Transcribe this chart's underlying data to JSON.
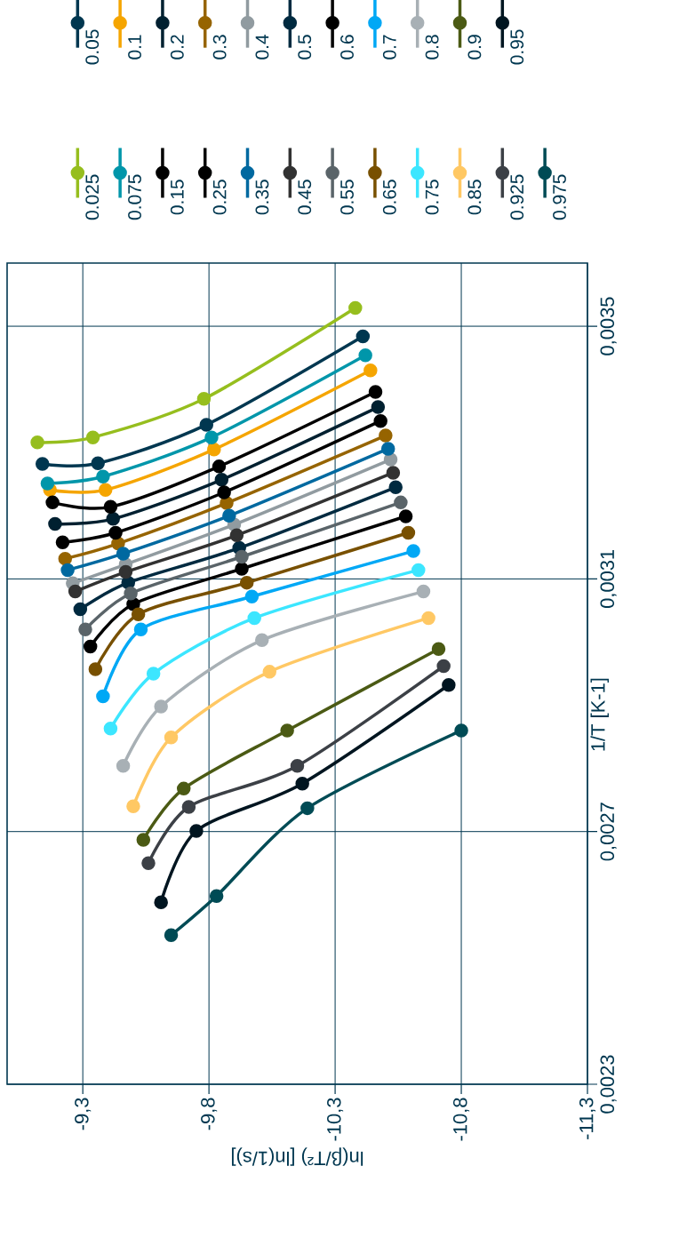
{
  "chart_data": {
    "type": "line",
    "xlabel": "ln(β/T²)  [ln(1/s)]",
    "ylabel": "1/T  [K-1]",
    "xlim": [
      -9.0,
      -11.3
    ],
    "ylim": [
      0.0023,
      0.0036
    ],
    "xticks": [
      {
        "value": -9.3,
        "label": "-9,3"
      },
      {
        "value": -9.8,
        "label": "-9,8"
      },
      {
        "value": -10.3,
        "label": "-10,3"
      },
      {
        "value": -10.8,
        "label": "-10,8"
      },
      {
        "value": -11.3,
        "label": "-11,3"
      }
    ],
    "yticks": [
      {
        "value": 0.0023,
        "label": "0,0023"
      },
      {
        "value": 0.0027,
        "label": "0,0027"
      },
      {
        "value": 0.0031,
        "label": "0,0031"
      },
      {
        "value": 0.0035,
        "label": "0,0035"
      }
    ],
    "grid": true,
    "legend": "top",
    "marker": "circle",
    "line_style": "solid",
    "series": [
      {
        "name": "0.025",
        "color": "#96be1e",
        "values": [
          0.003529,
          0.003385,
          0.003324,
          0.003316
        ],
        "x": [
          -10.38,
          -9.78,
          -9.34,
          -9.12
        ]
      },
      {
        "name": "0.05",
        "color": "#003750",
        "values": [
          0.003484,
          0.003344,
          0.003283,
          0.003282
        ],
        "x": [
          -10.41,
          -9.79,
          -9.36,
          -9.14
        ]
      },
      {
        "name": "0.075",
        "color": "#0096aa",
        "values": [
          0.003454,
          0.003324,
          0.003262,
          0.003251
        ],
        "x": [
          -10.42,
          -9.81,
          -9.38,
          -9.16
        ]
      },
      {
        "name": "0.1",
        "color": "#f5a500",
        "values": [
          0.00343,
          0.003305,
          0.003241,
          0.003241
        ],
        "x": [
          -10.44,
          -9.82,
          -9.39,
          -9.17
        ]
      },
      {
        "name": "0.15",
        "color": "#000000",
        "values": [
          0.003396,
          0.003278,
          0.003214,
          0.003221
        ],
        "x": [
          -10.46,
          -9.84,
          -9.41,
          -9.18
        ]
      },
      {
        "name": "0.2",
        "color": "#002030",
        "values": [
          0.003372,
          0.003257,
          0.003195,
          0.003187
        ],
        "x": [
          -10.47,
          -9.85,
          -9.42,
          -9.19
        ]
      },
      {
        "name": "0.25",
        "color": "#000000",
        "values": [
          0.00335,
          0.003237,
          0.003173,
          0.003158
        ],
        "x": [
          -10.48,
          -9.86,
          -9.43,
          -9.22
        ]
      },
      {
        "name": "0.3",
        "color": "#966400",
        "values": [
          0.003327,
          0.00322,
          0.003156,
          0.003132
        ],
        "x": [
          -10.5,
          -9.87,
          -9.44,
          -9.23
        ]
      },
      {
        "name": "0.35",
        "color": "#0069a0",
        "values": [
          0.003306,
          0.0032,
          0.00314,
          0.003114
        ],
        "x": [
          -10.51,
          -9.88,
          -9.46,
          -9.24
        ]
      },
      {
        "name": "0.4",
        "color": "#919ba0",
        "values": [
          0.003289,
          0.003186,
          0.003123,
          0.003093
        ],
        "x": [
          -10.52,
          -9.9,
          -9.47,
          -9.26
        ]
      },
      {
        "name": "0.45",
        "color": "#323232",
        "values": [
          0.003268,
          0.003169,
          0.003111,
          0.00308
        ],
        "x": [
          -10.53,
          -9.91,
          -9.47,
          -9.27
        ]
      },
      {
        "name": "0.5",
        "color": "#002a40",
        "values": [
          0.003245,
          0.003149,
          0.003094,
          0.003052
        ],
        "x": [
          -10.54,
          -9.92,
          -9.48,
          -9.29
        ]
      },
      {
        "name": "0.55",
        "color": "#5a6469",
        "values": [
          0.003221,
          0.003135,
          0.003077,
          0.00302
        ],
        "x": [
          -10.56,
          -9.93,
          -9.49,
          -9.31
        ]
      },
      {
        "name": "0.6",
        "color": "#000000",
        "values": [
          0.003199,
          0.003116,
          0.00306,
          0.002993
        ],
        "x": [
          -10.58,
          -9.93,
          -9.5,
          -9.33
        ]
      },
      {
        "name": "0.65",
        "color": "#785000",
        "values": [
          0.003173,
          0.003094,
          0.003044,
          0.002957
        ],
        "x": [
          -10.59,
          -9.95,
          -9.52,
          -9.35
        ]
      },
      {
        "name": "0.7",
        "color": "#00a8f5",
        "values": [
          0.003144,
          0.003072,
          0.00302,
          0.002914
        ],
        "x": [
          -10.61,
          -9.97,
          -9.53,
          -9.38
        ]
      },
      {
        "name": "0.75",
        "color": "#3ce6ff",
        "values": [
          0.003114,
          0.003038,
          0.00295,
          0.002863
        ],
        "x": [
          -10.63,
          -9.98,
          -9.58,
          -9.41
        ]
      },
      {
        "name": "0.8",
        "color": "#a8b0b5",
        "values": [
          0.00308,
          0.003003,
          0.002898,
          0.002804
        ],
        "x": [
          -10.65,
          -10.01,
          -9.61,
          -9.46
        ]
      },
      {
        "name": "0.85",
        "color": "#ffc864",
        "values": [
          0.003038,
          0.002953,
          0.002849,
          0.00274
        ],
        "x": [
          -10.67,
          -10.04,
          -9.65,
          -9.5
        ]
      },
      {
        "name": "0.9",
        "color": "#4b5a14",
        "values": [
          0.002989,
          0.00286,
          0.002768,
          0.002687
        ],
        "x": [
          -10.71,
          -10.11,
          -9.7,
          -9.54
        ]
      },
      {
        "name": "0.925",
        "color": "#3c4046",
        "values": [
          0.002962,
          0.002804,
          0.002739,
          0.00265
        ],
        "x": [
          -10.73,
          -10.15,
          -9.72,
          -9.56
        ]
      },
      {
        "name": "0.95",
        "color": "#001520",
        "values": [
          0.002932,
          0.002776,
          0.002701,
          0.002588
        ],
        "x": [
          -10.75,
          -10.17,
          -9.75,
          -9.61
        ]
      },
      {
        "name": "0.975",
        "color": "#004b55",
        "values": [
          0.00286,
          0.002737,
          0.002598,
          0.002536
        ],
        "x": [
          -10.8,
          -10.19,
          -9.83,
          -9.65
        ]
      }
    ]
  }
}
